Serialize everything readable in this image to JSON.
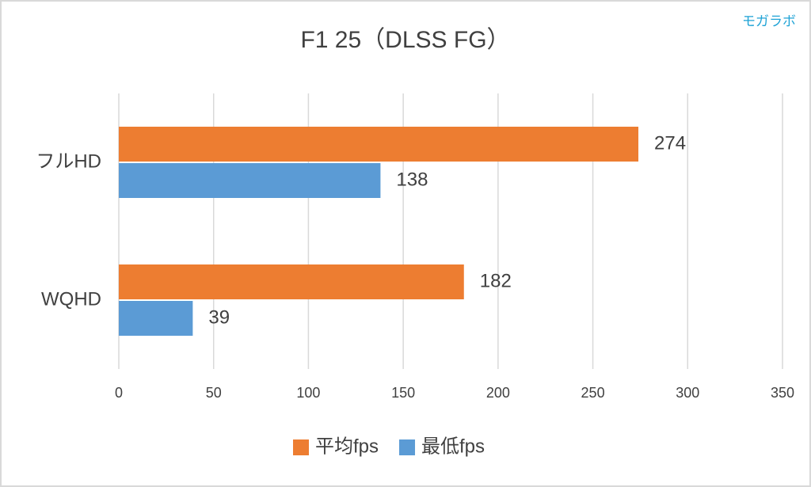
{
  "chart_data": {
    "type": "bar",
    "orientation": "horizontal",
    "title": "F1 25（DLSS FG）",
    "watermark": "モガラボ",
    "categories": [
      "フルHD",
      "WQHD"
    ],
    "series": [
      {
        "name": "平均fps",
        "color": "#ed7d31",
        "values": [
          274,
          182
        ]
      },
      {
        "name": "最低fps",
        "color": "#5b9bd5",
        "values": [
          138,
          39
        ]
      }
    ],
    "xlim": [
      0,
      350
    ],
    "xticks": [
      0,
      50,
      100,
      150,
      200,
      250,
      300,
      350
    ],
    "grid": true,
    "legend": "bottom"
  }
}
